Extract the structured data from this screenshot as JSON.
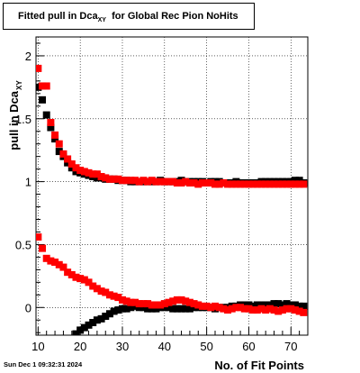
{
  "chart_data": {
    "type": "scatter",
    "title": "Fitted pull in Dca",
    "title_subscript": "XY",
    "title_suffix": "for Global Rec Pion NoHits",
    "xlabel": "No. of Fit Points",
    "ylabel": "pull in Dca",
    "ylabel_subscript": "XY",
    "xlim": [
      9.5,
      74
    ],
    "ylim": [
      -0.22,
      2.15
    ],
    "xticks": [
      10,
      20,
      30,
      40,
      50,
      60,
      70
    ],
    "yticks": [
      0,
      0.5,
      1,
      1.5,
      2
    ],
    "xtick_labels": [
      "10",
      "20",
      "30",
      "40",
      "50",
      "60",
      "70"
    ],
    "ytick_labels": [
      "0",
      "0.5",
      "1",
      "1.5",
      "2"
    ],
    "grid": true,
    "marker": "square",
    "series": [
      {
        "name": "",
        "color": "#000000",
        "x": [
          10,
          11,
          12,
          13,
          14,
          15,
          16,
          17,
          18,
          19,
          20,
          21,
          22,
          23,
          24,
          25,
          26,
          27,
          28,
          29,
          30,
          31,
          32,
          33,
          34,
          35,
          36,
          37,
          38,
          39,
          40,
          41,
          42,
          43,
          44,
          45,
          46,
          47,
          48,
          49,
          50,
          51,
          52,
          53,
          54,
          55,
          56,
          57,
          58,
          59,
          60,
          61,
          62,
          63,
          64,
          65,
          66,
          67,
          68,
          69,
          70,
          71,
          72,
          73
        ],
        "values": [
          1.75,
          1.65,
          1.53,
          1.43,
          1.34,
          1.24,
          1.2,
          1.15,
          1.11,
          1.08,
          1.07,
          1.06,
          1.05,
          1.04,
          1.03,
          1.03,
          1.02,
          1.02,
          1.02,
          1.01,
          1.01,
          1.01,
          1.0,
          1.0,
          1.0,
          1.0,
          1.0,
          1.0,
          1.0,
          1.01,
          1.0,
          1.0,
          1.0,
          1.0,
          1.01,
          1.0,
          1.0,
          1.0,
          1.0,
          1.0,
          0.99,
          1.0,
          1.0,
          1.0,
          0.99,
          0.99,
          0.99,
          1.0,
          0.99,
          0.99,
          0.99,
          0.99,
          0.99,
          1.0,
          1.0,
          1.0,
          1.0,
          1.0,
          1.0,
          1.0,
          1.0,
          1.01,
          1.01,
          0.99
        ]
      },
      {
        "name": "",
        "color": "#000000",
        "x": [
          19,
          20,
          21,
          22,
          23,
          24,
          25,
          26,
          27,
          28,
          29,
          30,
          31,
          32,
          33,
          34,
          35,
          36,
          37,
          38,
          39,
          40,
          41,
          42,
          43,
          44,
          45,
          46,
          47,
          48,
          49,
          50,
          51,
          52,
          53,
          54,
          55,
          56,
          57,
          58,
          59,
          60,
          61,
          62,
          63,
          64,
          65,
          66,
          67,
          68,
          69,
          70,
          71,
          72,
          73
        ],
        "values": [
          -0.21,
          -0.18,
          -0.16,
          -0.14,
          -0.12,
          -0.1,
          -0.09,
          -0.07,
          -0.05,
          -0.03,
          -0.02,
          -0.01,
          -0.01,
          0.0,
          0.01,
          0.0,
          0.0,
          -0.01,
          -0.01,
          -0.01,
          0.0,
          0.0,
          0.0,
          -0.01,
          -0.01,
          -0.01,
          -0.01,
          -0.01,
          0.0,
          0.0,
          0.0,
          0.0,
          0.0,
          -0.01,
          0.0,
          0.0,
          0.0,
          0.01,
          0.01,
          0.02,
          0.02,
          0.02,
          0.01,
          0.02,
          0.02,
          0.02,
          0.02,
          0.03,
          0.03,
          0.02,
          0.03,
          0.02,
          0.02,
          0.01,
          0.01
        ]
      },
      {
        "name": "",
        "color": "#ff0000",
        "x": [
          10,
          11,
          12,
          13,
          14,
          15,
          16,
          17,
          18,
          19,
          20,
          21,
          22,
          23,
          24,
          25,
          26,
          27,
          28,
          29,
          30,
          31,
          32,
          33,
          34,
          35,
          36,
          37,
          38,
          39,
          40,
          41,
          42,
          43,
          44,
          45,
          46,
          47,
          48,
          49,
          50,
          51,
          52,
          53,
          54,
          55,
          56,
          57,
          58,
          59,
          60,
          61,
          62,
          63,
          64,
          65,
          66,
          67,
          68,
          69,
          70,
          71,
          72,
          73
        ],
        "values": [
          1.9,
          1.76,
          1.76,
          1.47,
          1.37,
          1.3,
          1.22,
          1.18,
          1.14,
          1.11,
          1.09,
          1.08,
          1.07,
          1.06,
          1.06,
          1.04,
          1.03,
          1.02,
          1.02,
          1.02,
          1.01,
          1.01,
          1.01,
          1.01,
          1.0,
          1.01,
          1.0,
          1.01,
          1.0,
          1.0,
          1.0,
          1.0,
          1.0,
          0.99,
          0.99,
          1.0,
          0.99,
          0.99,
          0.98,
          0.99,
          0.99,
          0.99,
          0.98,
          0.98,
          0.99,
          0.98,
          0.98,
          0.98,
          0.98,
          0.98,
          0.98,
          0.98,
          0.98,
          0.98,
          0.98,
          0.98,
          0.98,
          0.98,
          0.98,
          0.98,
          0.98,
          0.98,
          0.98,
          0.98
        ]
      },
      {
        "name": "",
        "color": "#ff0000",
        "x": [
          10,
          11,
          12,
          13,
          14,
          15,
          16,
          17,
          18,
          19,
          20,
          21,
          22,
          23,
          24,
          25,
          26,
          27,
          28,
          29,
          30,
          31,
          32,
          33,
          34,
          35,
          36,
          37,
          38,
          39,
          40,
          41,
          42,
          43,
          44,
          45,
          46,
          47,
          48,
          49,
          50,
          51,
          52,
          53,
          54,
          55,
          56,
          57,
          58,
          59,
          60,
          61,
          62,
          63,
          64,
          65,
          66,
          67,
          68,
          69,
          70,
          71,
          72,
          73
        ],
        "values": [
          0.56,
          0.47,
          0.39,
          0.37,
          0.36,
          0.34,
          0.32,
          0.28,
          0.26,
          0.24,
          0.23,
          0.22,
          0.2,
          0.17,
          0.15,
          0.13,
          0.12,
          0.1,
          0.09,
          0.08,
          0.06,
          0.05,
          0.04,
          0.04,
          0.03,
          0.03,
          0.03,
          0.02,
          0.02,
          0.02,
          0.03,
          0.04,
          0.05,
          0.06,
          0.06,
          0.05,
          0.04,
          0.03,
          0.02,
          0.01,
          0.01,
          0.0,
          0.01,
          0.0,
          -0.01,
          -0.02,
          -0.01,
          0.0,
          0.0,
          -0.01,
          -0.01,
          -0.02,
          -0.02,
          -0.01,
          -0.02,
          -0.01,
          -0.02,
          -0.03,
          -0.02,
          -0.01,
          -0.01,
          -0.02,
          -0.03,
          -0.04
        ]
      }
    ]
  },
  "footer": {
    "date": "Sun Dec  1 09:32:31 2024"
  }
}
